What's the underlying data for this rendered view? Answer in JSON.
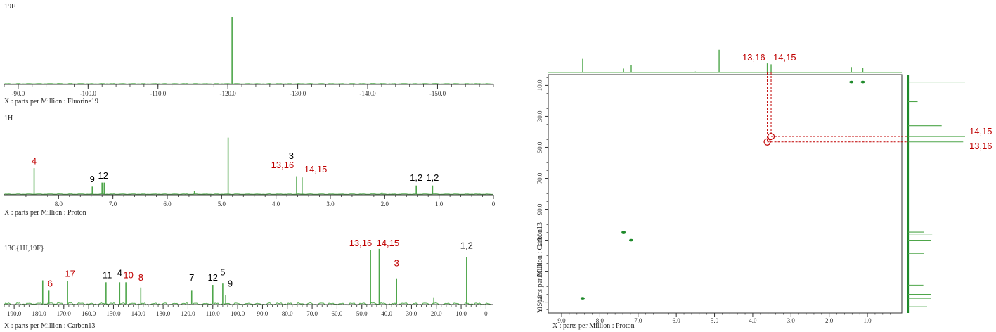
{
  "colors": {
    "trace": "#4ea64a",
    "axis": "#333333",
    "red": "#c00000",
    "black": "#000000",
    "cross_peak": "#1f8a2b",
    "baseline": "#5bb156"
  },
  "chart_data": [
    {
      "type": "line",
      "title": "19F",
      "xlabel": "X : parts per Million : Fluorine19",
      "xlim": [
        -88,
        -158
      ],
      "ticks": [
        -90,
        -100,
        -110,
        -120,
        -130,
        -140,
        -150
      ],
      "tick_labels": [
        "-90.0",
        "-100.0",
        "-110.0",
        "-120.0",
        "-130.0",
        "-140.0",
        "-150.0"
      ],
      "peaks": [
        {
          "x": -120.6,
          "h": 1.0
        }
      ],
      "labels": []
    },
    {
      "type": "line",
      "title": "1H",
      "xlabel": "X : parts per Million : Proton",
      "xlim": [
        9.0,
        0.0
      ],
      "ticks": [
        8,
        7,
        6,
        5,
        4,
        3,
        2,
        1,
        0
      ],
      "tick_labels": [
        "8.0",
        "7.0",
        "6.0",
        "5.0",
        "4.0",
        "3.0",
        "2.0",
        "1.0",
        "0"
      ],
      "peaks": [
        {
          "x": 8.45,
          "h": 0.45
        },
        {
          "x": 7.38,
          "h": 0.13
        },
        {
          "x": 7.2,
          "h": 0.2
        },
        {
          "x": 7.16,
          "h": 0.2
        },
        {
          "x": 5.5,
          "h": 0.05
        },
        {
          "x": 4.88,
          "h": 0.98
        },
        {
          "x": 3.62,
          "h": 0.31
        },
        {
          "x": 3.52,
          "h": 0.29
        },
        {
          "x": 2.05,
          "h": 0.03
        },
        {
          "x": 1.42,
          "h": 0.15
        },
        {
          "x": 1.12,
          "h": 0.15
        }
      ],
      "labels": [
        {
          "text": "4",
          "x": 8.45,
          "level": 0.47,
          "color": "red"
        },
        {
          "text": "9",
          "x": 7.38,
          "level": 0.16,
          "color": "black"
        },
        {
          "text": "12",
          "x": 7.18,
          "level": 0.22,
          "color": "black"
        },
        {
          "text": "3",
          "x": 3.72,
          "level": 0.56,
          "color": "black"
        },
        {
          "text": "13,16",
          "x": 3.88,
          "level": 0.4,
          "color": "red"
        },
        {
          "text": "14,15",
          "x": 3.27,
          "level": 0.33,
          "color": "red"
        },
        {
          "text": "1,2",
          "x": 1.42,
          "level": 0.18,
          "color": "black"
        },
        {
          "text": "1,2",
          "x": 1.12,
          "level": 0.18,
          "color": "black"
        }
      ]
    },
    {
      "type": "line",
      "title": "13C{1H,19F}",
      "xlabel": "X : parts per Million : Carbon13",
      "xlim": [
        194,
        -3
      ],
      "ticks": [
        190,
        180,
        170,
        160,
        150,
        140,
        130,
        120,
        110,
        100,
        90,
        80,
        70,
        60,
        50,
        40,
        30,
        20,
        10,
        0
      ],
      "tick_labels": [
        "190.0",
        "180.0",
        "170.0",
        "160.0",
        "150.0",
        "140.0",
        "130.0",
        "120.0",
        "110.0",
        "100.0",
        "90.0",
        "80.0",
        "70.0",
        "60.0",
        "50.0",
        "40.0",
        "30.0",
        "20.0",
        "10.0",
        "0"
      ],
      "peaks": [
        {
          "x": 178.5,
          "h": 0.36
        },
        {
          "x": 176.0,
          "h": 0.2
        },
        {
          "x": 168.5,
          "h": 0.35
        },
        {
          "x": 153.0,
          "h": 0.33
        },
        {
          "x": 147.5,
          "h": 0.33
        },
        {
          "x": 145.0,
          "h": 0.33
        },
        {
          "x": 139.0,
          "h": 0.25
        },
        {
          "x": 118.5,
          "h": 0.2
        },
        {
          "x": 110.0,
          "h": 0.29
        },
        {
          "x": 106.0,
          "h": 0.31
        },
        {
          "x": 104.8,
          "h": 0.13
        },
        {
          "x": 46.5,
          "h": 0.82
        },
        {
          "x": 43.0,
          "h": 0.84
        },
        {
          "x": 36.0,
          "h": 0.39
        },
        {
          "x": 21.0,
          "h": 0.1
        },
        {
          "x": 7.8,
          "h": 0.71
        }
      ],
      "labels": [
        {
          "text": "6",
          "x": 175.5,
          "level": 0.22,
          "color": "red"
        },
        {
          "text": "17",
          "x": 167.5,
          "level": 0.37,
          "color": "red"
        },
        {
          "text": "11",
          "x": 152.5,
          "level": 0.35,
          "color": "black"
        },
        {
          "text": "4",
          "x": 147.5,
          "level": 0.38,
          "color": "black"
        },
        {
          "text": "10",
          "x": 144.0,
          "level": 0.35,
          "color": "red"
        },
        {
          "text": "8",
          "x": 139.0,
          "level": 0.31,
          "color": "red"
        },
        {
          "text": "7",
          "x": 118.5,
          "level": 0.31,
          "color": "black"
        },
        {
          "text": "12",
          "x": 110.0,
          "level": 0.31,
          "color": "black"
        },
        {
          "text": "5",
          "x": 106.0,
          "level": 0.39,
          "color": "black"
        },
        {
          "text": "9",
          "x": 103.0,
          "level": 0.22,
          "color": "black"
        },
        {
          "text": "13,16",
          "x": 50.5,
          "level": 0.84,
          "color": "red"
        },
        {
          "text": "14,15",
          "x": 39.5,
          "level": 0.84,
          "color": "red"
        },
        {
          "text": "3",
          "x": 36.0,
          "level": 0.53,
          "color": "red"
        },
        {
          "text": "1,2",
          "x": 7.8,
          "level": 0.8,
          "color": "black"
        }
      ]
    },
    {
      "type": "scatter",
      "title": "",
      "xlabel": "X : parts per Million : Proton",
      "ylabel": "Y : parts per Million : Carbon13",
      "xlim": [
        9.35,
        0.1
      ],
      "ylim": [
        3,
        157
      ],
      "xticks": [
        9,
        8,
        7,
        6,
        5,
        4,
        3,
        2,
        1
      ],
      "xtick_labels": [
        "9.0",
        "8.0",
        "7.0",
        "6.0",
        "5.0",
        "4.0",
        "3.0",
        "2.0",
        "1.0"
      ],
      "yticks": [
        10,
        30,
        50,
        70,
        90,
        110,
        130,
        150
      ],
      "ytick_labels": [
        "10.0",
        "30.0",
        "50.0",
        "70.0",
        "90.0",
        "110.0",
        "130.0",
        "150.0"
      ],
      "cross_peaks": [
        {
          "x": 1.42,
          "y": 7.8
        },
        {
          "x": 1.12,
          "y": 7.8
        },
        {
          "x": 7.38,
          "y": 104.8
        },
        {
          "x": 7.18,
          "y": 110.0
        },
        {
          "x": 8.45,
          "y": 147.5
        }
      ],
      "circled_peaks": [
        {
          "x": 3.62,
          "y": 46.5
        },
        {
          "x": 3.52,
          "y": 43.0
        }
      ],
      "top_projection": [
        {
          "x": 8.45,
          "h": 0.45
        },
        {
          "x": 7.38,
          "h": 0.13
        },
        {
          "x": 7.18,
          "h": 0.24
        },
        {
          "x": 5.5,
          "h": 0.03
        },
        {
          "x": 4.88,
          "h": 0.75
        },
        {
          "x": 3.62,
          "h": 0.3
        },
        {
          "x": 3.52,
          "h": 0.27
        },
        {
          "x": 2.05,
          "h": 0.02
        },
        {
          "x": 1.42,
          "h": 0.18
        },
        {
          "x": 1.12,
          "h": 0.14
        }
      ],
      "right_projection": [
        {
          "y": 7.8,
          "h": 0.9
        },
        {
          "y": 20.5,
          "h": 0.15
        },
        {
          "y": 36.0,
          "h": 0.53
        },
        {
          "y": 43.0,
          "h": 0.9
        },
        {
          "y": 46.5,
          "h": 0.87
        },
        {
          "y": 104.8,
          "h": 0.25
        },
        {
          "y": 106.0,
          "h": 0.38
        },
        {
          "y": 110.0,
          "h": 0.36
        },
        {
          "y": 118.5,
          "h": 0.25
        },
        {
          "y": 139.0,
          "h": 0.24
        },
        {
          "y": 145.0,
          "h": 0.36
        },
        {
          "y": 147.5,
          "h": 0.36
        },
        {
          "y": 153.0,
          "h": 0.3
        }
      ],
      "labels_top": [
        {
          "text": "13,16",
          "x": 3.62
        },
        {
          "text": "14,15",
          "x": 3.52
        }
      ],
      "labels_right": [
        {
          "text": "14,15",
          "y": 43.0
        },
        {
          "text": "13,16",
          "y": 46.5
        }
      ]
    }
  ]
}
